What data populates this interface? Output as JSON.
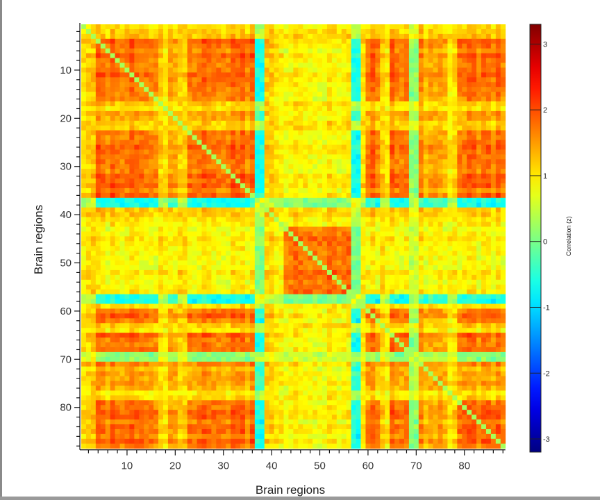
{
  "chart_data": {
    "type": "heatmap",
    "xlabel": "Brain regions",
    "ylabel": "Brain regions",
    "n_regions": 88,
    "x_ticks": [
      10,
      20,
      30,
      40,
      50,
      60,
      70,
      80
    ],
    "y_ticks": [
      10,
      20,
      30,
      40,
      50,
      60,
      70,
      80
    ],
    "colormap": "jet",
    "colorbar": {
      "label": "Correlation (z)",
      "ticks": [
        3,
        2,
        1,
        0,
        -1,
        -2,
        -3
      ],
      "range": [
        -3.2,
        3.3
      ]
    },
    "module_ranges": [
      [
        [
          4,
          16
        ],
        [
          23,
          36
        ],
        [
          60,
          62
        ],
        [
          65,
          68
        ],
        [
          79,
          88
        ]
      ],
      [
        [
          19,
          20
        ],
        [
          71,
          76
        ]
      ],
      [
        [
          43,
          56
        ]
      ],
      [
        [
          1,
          3
        ],
        [
          17,
          18
        ],
        [
          21,
          22
        ],
        [
          39,
          42
        ],
        [
          59,
          59
        ],
        [
          63,
          64
        ],
        [
          77,
          78
        ]
      ],
      [
        [
          37,
          38
        ],
        [
          57,
          58
        ]
      ],
      [
        [
          69,
          70
        ]
      ]
    ],
    "module_block_values": [
      [
        1.8,
        1.5,
        0.9,
        1.1,
        -0.6,
        0.2
      ],
      [
        1.5,
        1.5,
        0.9,
        1.1,
        -0.3,
        0.5
      ],
      [
        0.9,
        0.9,
        1.8,
        1.0,
        0.1,
        0.6
      ],
      [
        1.1,
        1.1,
        1.0,
        1.0,
        0.4,
        0.7
      ],
      [
        -0.6,
        -0.3,
        0.1,
        0.4,
        1.0,
        0.5
      ],
      [
        0.2,
        0.5,
        0.6,
        0.7,
        0.5,
        1.0
      ]
    ],
    "diagonal_value": 0.3,
    "grid": false,
    "legend": "colorbar-right"
  }
}
